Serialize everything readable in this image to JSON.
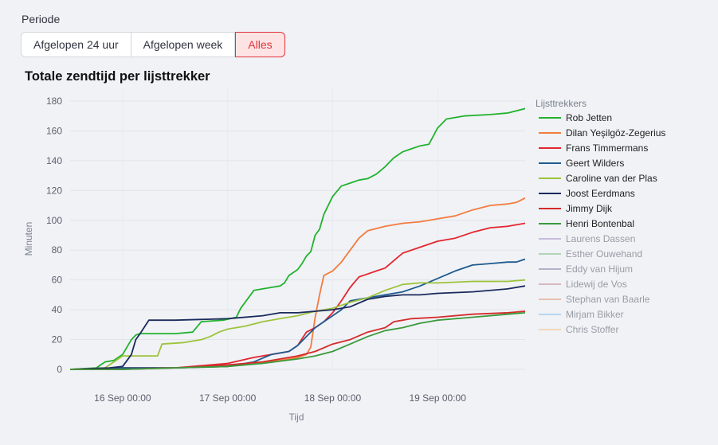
{
  "period": {
    "label": "Periode",
    "options": [
      {
        "label": "Afgelopen 24 uur",
        "selected": false
      },
      {
        "label": "Afgelopen week",
        "selected": false
      },
      {
        "label": "Alles",
        "selected": true
      }
    ]
  },
  "chart_data": {
    "type": "line",
    "title": "Totale zendtijd per lijsttrekker",
    "xlabel": "Tijd",
    "ylabel": "Minuten",
    "ylim": [
      0,
      180
    ],
    "yticks": [
      0,
      20,
      40,
      60,
      80,
      100,
      120,
      140,
      160,
      180
    ],
    "xlim": [
      "2023-09-15 12:00",
      "2023-09-19 20:00"
    ],
    "xticks": [
      {
        "t": "2023-09-16 00:00",
        "label": "16 Sep 00:00"
      },
      {
        "t": "2023-09-17 00:00",
        "label": "17 Sep 00:00"
      },
      {
        "t": "2023-09-18 00:00",
        "label": "18 Sep 00:00"
      },
      {
        "t": "2023-09-19 00:00",
        "label": "19 Sep 00:00"
      }
    ],
    "legend_title": "Lijsttrekkers",
    "legend_position": "right",
    "grid": true,
    "series": [
      {
        "name": "Rob Jetten",
        "color": "#22b22e",
        "visible": true,
        "x": [
          "2023-09-15 12:00",
          "2023-09-15 18:00",
          "2023-09-15 20:00",
          "2023-09-15 22:00",
          "2023-09-16 00:00",
          "2023-09-16 02:00",
          "2023-09-16 03:00",
          "2023-09-16 04:00",
          "2023-09-16 12:00",
          "2023-09-16 16:00",
          "2023-09-16 18:00",
          "2023-09-16 23:00",
          "2023-09-17 02:00",
          "2023-09-17 03:00",
          "2023-09-17 06:00",
          "2023-09-17 08:00",
          "2023-09-17 10:00",
          "2023-09-17 12:00",
          "2023-09-17 13:00",
          "2023-09-17 14:00",
          "2023-09-17 16:00",
          "2023-09-17 17:00",
          "2023-09-17 18:00",
          "2023-09-17 19:00",
          "2023-09-17 20:00",
          "2023-09-17 21:00",
          "2023-09-17 22:00",
          "2023-09-18 00:00",
          "2023-09-18 02:00",
          "2023-09-18 04:00",
          "2023-09-18 06:00",
          "2023-09-18 08:00",
          "2023-09-18 10:00",
          "2023-09-18 12:00",
          "2023-09-18 14:00",
          "2023-09-18 16:00",
          "2023-09-18 18:00",
          "2023-09-18 20:00",
          "2023-09-18 22:00",
          "2023-09-19 00:00",
          "2023-09-19 02:00",
          "2023-09-19 06:00",
          "2023-09-19 12:00",
          "2023-09-19 16:00",
          "2023-09-19 20:00"
        ],
        "values": [
          0,
          1,
          5,
          6,
          10,
          20,
          23,
          24,
          24,
          25,
          32,
          33,
          35,
          41,
          53,
          54,
          55,
          56,
          58,
          63,
          67,
          71,
          76,
          79,
          90,
          94,
          104,
          116,
          123,
          125,
          127,
          128,
          131,
          136,
          142,
          146,
          148,
          150,
          151,
          162,
          168,
          170,
          171,
          172,
          175
        ]
      },
      {
        "name": "Dilan Yeşilgöz-Zegerius",
        "color": "#f47b3e",
        "visible": true,
        "x": [
          "2023-09-15 12:00",
          "2023-09-16 00:00",
          "2023-09-16 12:00",
          "2023-09-17 00:00",
          "2023-09-17 06:00",
          "2023-09-17 12:00",
          "2023-09-17 16:00",
          "2023-09-17 18:00",
          "2023-09-17 19:00",
          "2023-09-17 20:00",
          "2023-09-17 21:00",
          "2023-09-17 22:00",
          "2023-09-18 00:00",
          "2023-09-18 02:00",
          "2023-09-18 04:00",
          "2023-09-18 06:00",
          "2023-09-18 08:00",
          "2023-09-18 12:00",
          "2023-09-18 16:00",
          "2023-09-18 20:00",
          "2023-09-19 00:00",
          "2023-09-19 04:00",
          "2023-09-19 08:00",
          "2023-09-19 12:00",
          "2023-09-19 16:00",
          "2023-09-19 18:00",
          "2023-09-19 20:00"
        ],
        "values": [
          0,
          1,
          1,
          2,
          4,
          6,
          8,
          10,
          15,
          35,
          50,
          63,
          66,
          72,
          80,
          88,
          93,
          96,
          98,
          99,
          101,
          103,
          107,
          110,
          111,
          112,
          115
        ]
      },
      {
        "name": "Frans Timmermans",
        "color": "#e3262f",
        "visible": true,
        "x": [
          "2023-09-15 12:00",
          "2023-09-16 00:00",
          "2023-09-16 12:00",
          "2023-09-16 16:00",
          "2023-09-17 00:00",
          "2023-09-17 06:00",
          "2023-09-17 10:00",
          "2023-09-17 14:00",
          "2023-09-17 16:00",
          "2023-09-17 18:00",
          "2023-09-17 20:00",
          "2023-09-17 22:00",
          "2023-09-18 00:00",
          "2023-09-18 02:00",
          "2023-09-18 04:00",
          "2023-09-18 06:00",
          "2023-09-18 08:00",
          "2023-09-18 10:00",
          "2023-09-18 12:00",
          "2023-09-18 14:00",
          "2023-09-18 16:00",
          "2023-09-18 20:00",
          "2023-09-19 00:00",
          "2023-09-19 04:00",
          "2023-09-19 08:00",
          "2023-09-19 12:00",
          "2023-09-19 16:00",
          "2023-09-19 20:00"
        ],
        "values": [
          0,
          1,
          1,
          2,
          4,
          8,
          10,
          12,
          16,
          25,
          28,
          32,
          38,
          46,
          55,
          62,
          64,
          66,
          68,
          73,
          78,
          82,
          86,
          88,
          92,
          95,
          96,
          98
        ]
      },
      {
        "name": "Geert Wilders",
        "color": "#1e5a8f",
        "visible": true,
        "x": [
          "2023-09-15 12:00",
          "2023-09-16 00:00",
          "2023-09-16 12:00",
          "2023-09-17 00:00",
          "2023-09-17 06:00",
          "2023-09-17 10:00",
          "2023-09-17 14:00",
          "2023-09-17 16:00",
          "2023-09-17 18:00",
          "2023-09-17 20:00",
          "2023-09-17 22:00",
          "2023-09-18 00:00",
          "2023-09-18 02:00",
          "2023-09-18 04:00",
          "2023-09-18 08:00",
          "2023-09-18 12:00",
          "2023-09-18 16:00",
          "2023-09-18 20:00",
          "2023-09-19 00:00",
          "2023-09-19 04:00",
          "2023-09-19 08:00",
          "2023-09-19 12:00",
          "2023-09-19 16:00",
          "2023-09-19 18:00",
          "2023-09-19 20:00"
        ],
        "values": [
          0,
          1,
          1,
          2,
          5,
          10,
          12,
          16,
          22,
          28,
          32,
          36,
          40,
          46,
          48,
          50,
          52,
          56,
          61,
          66,
          70,
          71,
          72,
          72,
          74
        ]
      },
      {
        "name": "Caroline van der Plas",
        "color": "#9dc33b",
        "visible": true,
        "x": [
          "2023-09-15 12:00",
          "2023-09-15 20:00",
          "2023-09-16 00:00",
          "2023-09-16 08:00",
          "2023-09-16 09:00",
          "2023-09-16 14:00",
          "2023-09-16 18:00",
          "2023-09-16 20:00",
          "2023-09-16 22:00",
          "2023-09-17 00:00",
          "2023-09-17 04:00",
          "2023-09-17 08:00",
          "2023-09-17 12:00",
          "2023-09-17 16:00",
          "2023-09-17 20:00",
          "2023-09-18 00:00",
          "2023-09-18 04:00",
          "2023-09-18 08:00",
          "2023-09-18 12:00",
          "2023-09-18 16:00",
          "2023-09-18 20:00",
          "2023-09-19 00:00",
          "2023-09-19 08:00",
          "2023-09-19 16:00",
          "2023-09-19 20:00"
        ],
        "values": [
          0,
          1,
          9,
          9,
          17,
          18,
          20,
          22,
          25,
          27,
          29,
          32,
          34,
          36,
          39,
          41,
          45,
          48,
          53,
          57,
          58,
          58,
          59,
          59,
          60
        ]
      },
      {
        "name": "Joost Eerdmans",
        "color": "#1b2a5c",
        "visible": true,
        "x": [
          "2023-09-15 12:00",
          "2023-09-15 21:00",
          "2023-09-16 00:00",
          "2023-09-16 02:00",
          "2023-09-16 03:00",
          "2023-09-16 04:00",
          "2023-09-16 06:00",
          "2023-09-16 12:00",
          "2023-09-17 00:00",
          "2023-09-17 08:00",
          "2023-09-17 12:00",
          "2023-09-17 16:00",
          "2023-09-17 20:00",
          "2023-09-18 00:00",
          "2023-09-18 04:00",
          "2023-09-18 08:00",
          "2023-09-18 12:00",
          "2023-09-18 16:00",
          "2023-09-18 20:00",
          "2023-09-19 00:00",
          "2023-09-19 08:00",
          "2023-09-19 16:00",
          "2023-09-19 20:00"
        ],
        "values": [
          0,
          1,
          2,
          10,
          20,
          24,
          33,
          33,
          34,
          36,
          38,
          38,
          39,
          40,
          42,
          47,
          49,
          50,
          50,
          51,
          52,
          54,
          56
        ]
      },
      {
        "name": "Jimmy Dijk",
        "color": "#d42a2a",
        "visible": true,
        "x": [
          "2023-09-15 12:00",
          "2023-09-16 00:00",
          "2023-09-16 12:00",
          "2023-09-17 00:00",
          "2023-09-17 08:00",
          "2023-09-17 16:00",
          "2023-09-17 20:00",
          "2023-09-18 00:00",
          "2023-09-18 04:00",
          "2023-09-18 08:00",
          "2023-09-18 12:00",
          "2023-09-18 14:00",
          "2023-09-18 18:00",
          "2023-09-19 00:00",
          "2023-09-19 08:00",
          "2023-09-19 16:00",
          "2023-09-19 20:00"
        ],
        "values": [
          0,
          0,
          1,
          3,
          5,
          9,
          12,
          17,
          20,
          25,
          28,
          32,
          34,
          35,
          37,
          38,
          39
        ]
      },
      {
        "name": "Henri Bontenbal",
        "color": "#3a9a3a",
        "visible": true,
        "x": [
          "2023-09-15 12:00",
          "2023-09-16 00:00",
          "2023-09-16 12:00",
          "2023-09-17 00:00",
          "2023-09-17 08:00",
          "2023-09-17 16:00",
          "2023-09-17 20:00",
          "2023-09-18 00:00",
          "2023-09-18 04:00",
          "2023-09-18 08:00",
          "2023-09-18 12:00",
          "2023-09-18 16:00",
          "2023-09-18 20:00",
          "2023-09-19 00:00",
          "2023-09-19 08:00",
          "2023-09-19 16:00",
          "2023-09-19 20:00"
        ],
        "values": [
          0,
          0,
          1,
          2,
          4,
          7,
          9,
          12,
          17,
          22,
          26,
          28,
          31,
          33,
          35,
          37,
          38
        ]
      },
      {
        "name": "Laurens Dassen",
        "color": "#a48fc7",
        "visible": false,
        "x": [],
        "values": []
      },
      {
        "name": "Esther Ouwehand",
        "color": "#7cbf82",
        "visible": false,
        "x": [],
        "values": []
      },
      {
        "name": "Eddy van Hijum",
        "color": "#7c80a3",
        "visible": false,
        "x": [],
        "values": []
      },
      {
        "name": "Lidewij de Vos",
        "color": "#c28a8f",
        "visible": false,
        "x": [],
        "values": []
      },
      {
        "name": "Stephan van Baarle",
        "color": "#e09770",
        "visible": false,
        "x": [],
        "values": []
      },
      {
        "name": "Mirjam Bikker",
        "color": "#8ac0f0",
        "visible": false,
        "x": [],
        "values": []
      },
      {
        "name": "Chris Stoffer",
        "color": "#f2c18a",
        "visible": false,
        "x": [],
        "values": []
      }
    ]
  }
}
